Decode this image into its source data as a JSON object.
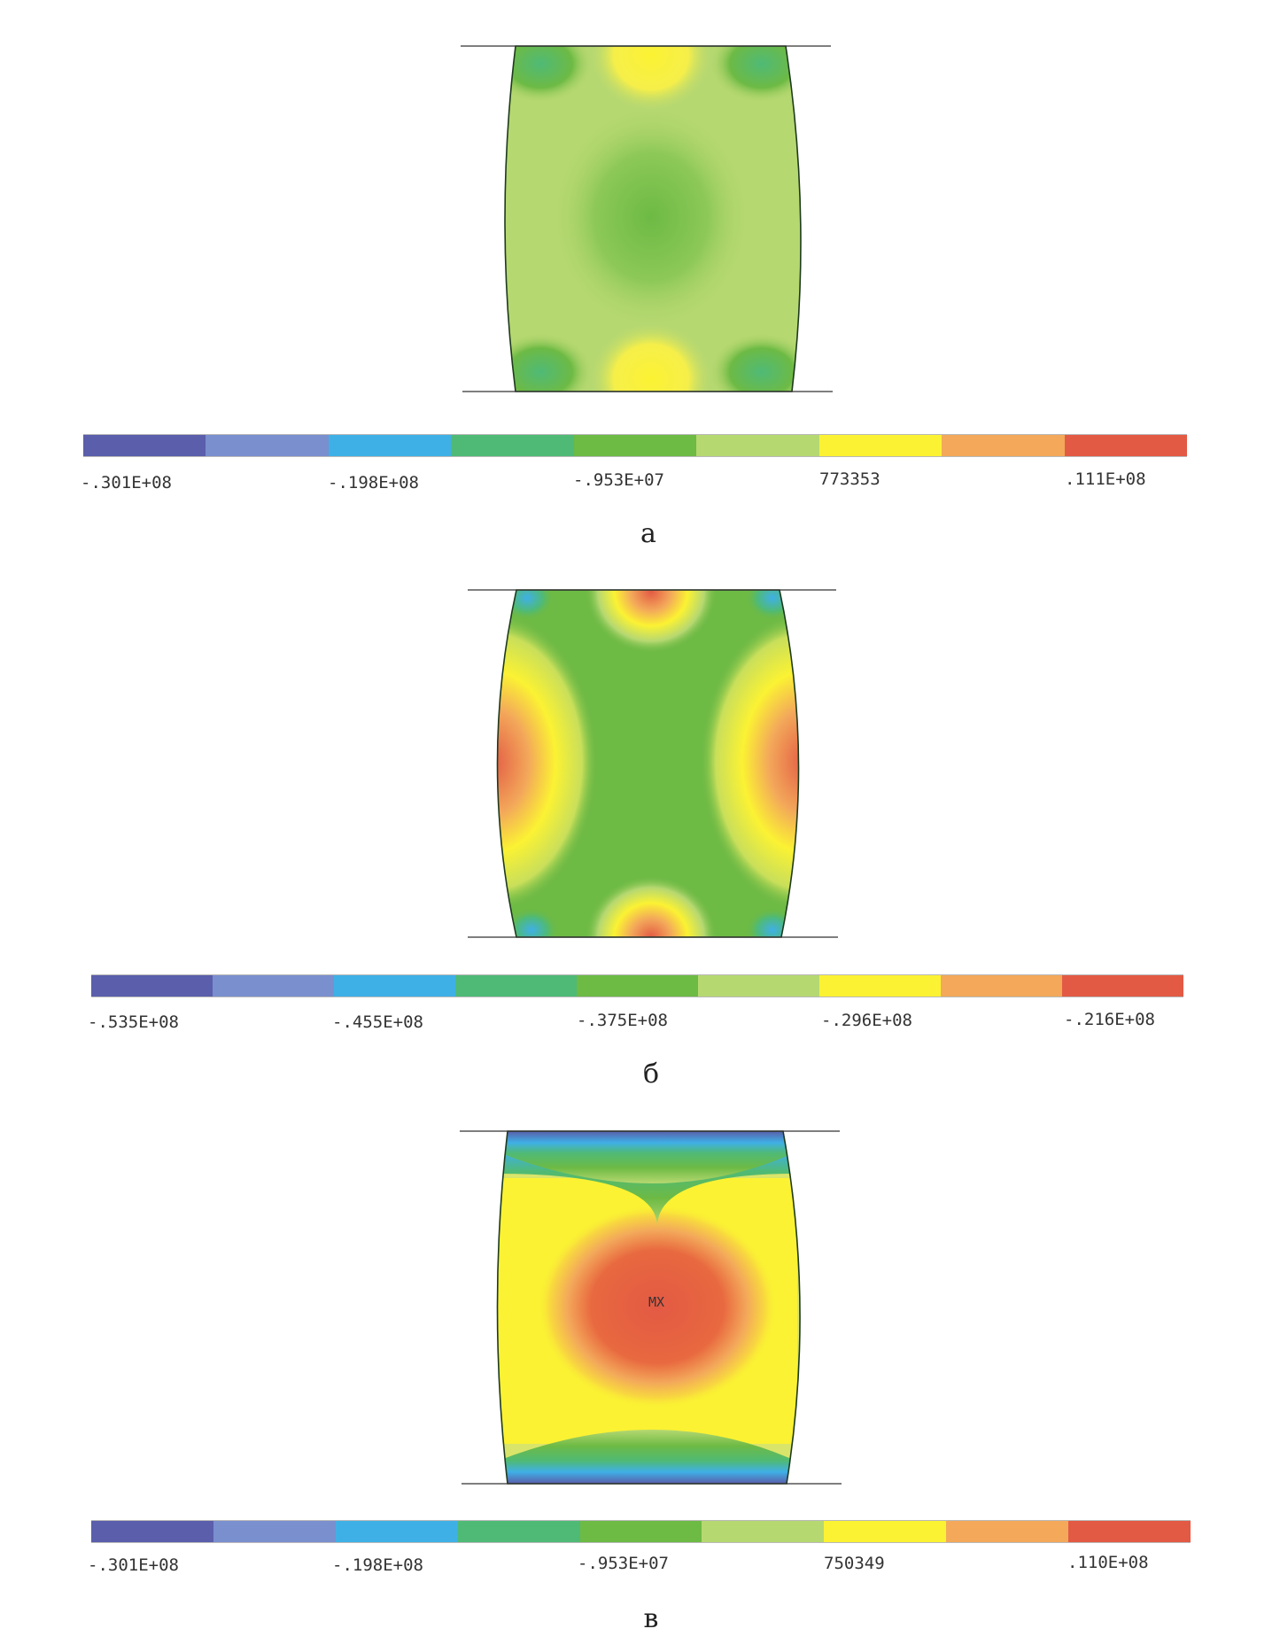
{
  "scale_colors": [
    "#5a5eab",
    "#7a8fce",
    "#3fb0e6",
    "#4fba76",
    "#6dba45",
    "#b6d871",
    "#fbf233",
    "#f3a85a",
    "#e35a44"
  ],
  "panels": [
    {
      "caption": "а",
      "labels": [
        "-.301E+08",
        "-.198E+08",
        "-.953E+07",
        "773353",
        ".111E+08"
      ]
    },
    {
      "caption": "б",
      "labels": [
        "-.535E+08",
        "-.455E+08",
        "-.375E+08",
        "-.296E+08",
        "-.216E+08"
      ]
    },
    {
      "caption": "в",
      "labels": [
        "-.301E+08",
        "-.198E+08",
        "-.953E+07",
        "750349",
        ".110E+08"
      ],
      "marker": "MX"
    }
  ]
}
